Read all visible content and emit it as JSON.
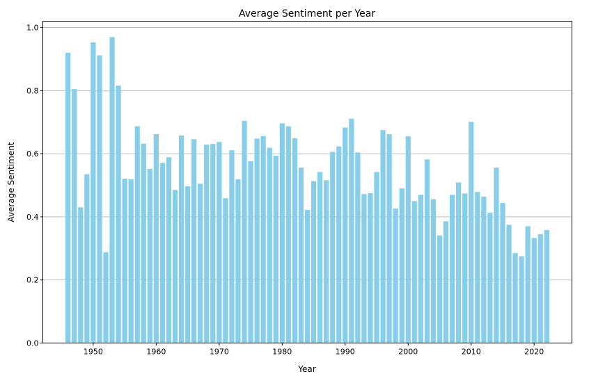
{
  "chart_data": {
    "type": "bar",
    "title": "Average Sentiment per Year",
    "xlabel": "Year",
    "ylabel": "Average Sentiment",
    "bar_color": "#87ceeb",
    "grid": "y",
    "xlim": [
      1942,
      2026
    ],
    "ylim": [
      0,
      1.02
    ],
    "xticks": [
      1950,
      1960,
      1970,
      1980,
      1990,
      2000,
      2010,
      2020
    ],
    "yticks": [
      "0.0",
      "0.2",
      "0.4",
      "0.6",
      "0.8",
      "1.0"
    ],
    "categories": [
      1946,
      1947,
      1948,
      1949,
      1950,
      1951,
      1952,
      1953,
      1954,
      1955,
      1956,
      1957,
      1958,
      1959,
      1960,
      1961,
      1962,
      1963,
      1964,
      1965,
      1966,
      1967,
      1968,
      1969,
      1970,
      1971,
      1972,
      1973,
      1974,
      1975,
      1976,
      1977,
      1978,
      1979,
      1980,
      1981,
      1982,
      1983,
      1984,
      1985,
      1986,
      1987,
      1988,
      1989,
      1990,
      1991,
      1992,
      1993,
      1994,
      1995,
      1996,
      1997,
      1998,
      1999,
      2000,
      2001,
      2002,
      2003,
      2004,
      2005,
      2006,
      2007,
      2008,
      2009,
      2010,
      2011,
      2012,
      2013,
      2014,
      2015,
      2016,
      2017,
      2018,
      2019,
      2020,
      2021,
      2022
    ],
    "values": [
      0.92,
      0.805,
      0.43,
      0.535,
      0.953,
      0.912,
      0.288,
      0.97,
      0.816,
      0.521,
      0.519,
      0.687,
      0.632,
      0.552,
      0.662,
      0.571,
      0.589,
      0.485,
      0.658,
      0.497,
      0.646,
      0.505,
      0.629,
      0.631,
      0.637,
      0.459,
      0.611,
      0.519,
      0.704,
      0.576,
      0.648,
      0.656,
      0.619,
      0.594,
      0.696,
      0.687,
      0.649,
      0.556,
      0.422,
      0.513,
      0.542,
      0.516,
      0.606,
      0.623,
      0.683,
      0.711,
      0.604,
      0.472,
      0.475,
      0.542,
      0.675,
      0.662,
      0.426,
      0.49,
      0.655,
      0.45,
      0.47,
      0.582,
      0.456,
      0.341,
      0.386,
      0.47,
      0.509,
      0.474,
      0.701,
      0.479,
      0.464,
      0.413,
      0.556,
      0.444,
      0.375,
      0.285,
      0.275,
      0.37,
      0.333,
      0.345,
      0.358
    ]
  }
}
